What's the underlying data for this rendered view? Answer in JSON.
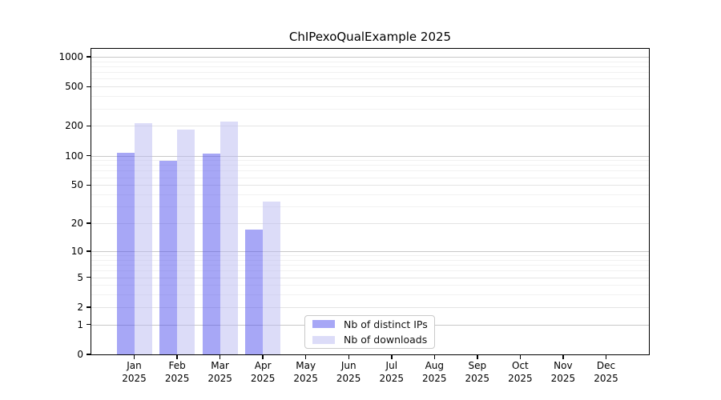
{
  "title": "ChIPexoQualExample 2025",
  "legend": {
    "items": [
      {
        "label": "Nb of distinct IPs"
      },
      {
        "label": "Nb of downloads"
      }
    ]
  },
  "chart_data": {
    "type": "bar",
    "title": "ChIPexoQualExample 2025",
    "xlabel": "",
    "ylabel": "",
    "categories": [
      "Jan 2025",
      "Feb 2025",
      "Mar 2025",
      "Apr 2025",
      "May 2025",
      "Jun 2025",
      "Jul 2025",
      "Aug 2025",
      "Sep 2025",
      "Oct 2025",
      "Nov 2025",
      "Dec 2025"
    ],
    "x_tick_months": [
      "Jan",
      "Feb",
      "Mar",
      "Apr",
      "May",
      "Jun",
      "Jul",
      "Aug",
      "Sep",
      "Oct",
      "Nov",
      "Dec"
    ],
    "x_tick_year": "2025",
    "series": [
      {
        "name": "Nb of distinct IPs",
        "solid_color": "#a7a7f6",
        "fill_rgba": "rgba(79,79,237,0.5)",
        "values": [
          107,
          89,
          105,
          17,
          0,
          0,
          0,
          0,
          0,
          0,
          0,
          0
        ]
      },
      {
        "name": "Nb of downloads",
        "solid_color": "#dcdcf8",
        "fill_rgba": "rgba(185,185,241,0.5)",
        "values": [
          213,
          185,
          223,
          34,
          0,
          0,
          0,
          0,
          0,
          0,
          0,
          0
        ]
      }
    ],
    "y_axis": {
      "scale": "log10(value+1)",
      "range": [
        0,
        1000
      ],
      "tick_values": [
        0,
        1,
        2,
        5,
        10,
        20,
        50,
        100,
        200,
        500,
        1000
      ],
      "tick_labels": [
        "0",
        "1",
        "2",
        "5",
        "10",
        "20",
        "50",
        "100",
        "200",
        "500",
        "1000"
      ],
      "minor_grid_values": [
        3,
        4,
        6,
        7,
        8,
        9,
        30,
        40,
        60,
        70,
        80,
        90,
        300,
        400,
        600,
        700,
        800,
        900
      ],
      "decade_grid_values": [
        1,
        10,
        100,
        1000
      ],
      "grid_color_decade": "#c8c8c8",
      "grid_color_major": "#e4e4e4",
      "grid_color_minor": "#f1f1f1"
    },
    "grid": "both",
    "legend_position": "lower-center"
  }
}
